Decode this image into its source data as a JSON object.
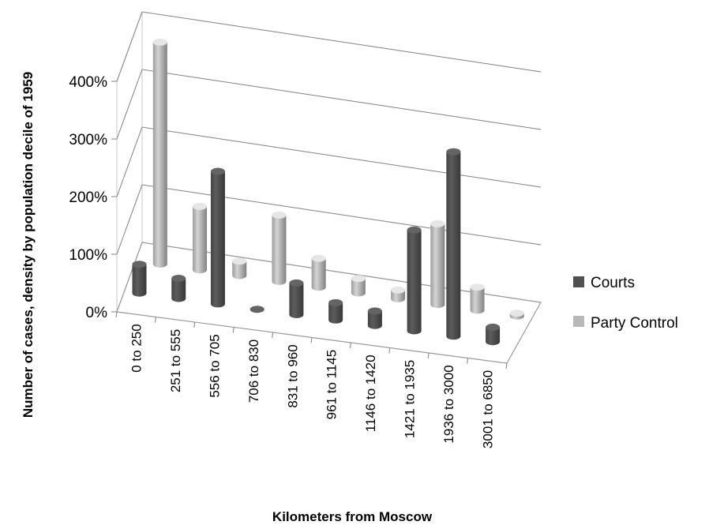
{
  "chart_data": {
    "type": "bar",
    "title": "",
    "xlabel": "Kilometers from Moscow",
    "ylabel": "Number of cases, density by population decile of 1959",
    "categories": [
      "0 to 250",
      "251 to 555",
      "556 to 705",
      "706 to 830",
      "831 to 960",
      "961 to 1145",
      "1146 to 1420",
      "1421 to 1935",
      "1936 to 3000",
      "3001 to 6850"
    ],
    "series": [
      {
        "name": "Courts",
        "color": "#505050",
        "values": [
          50,
          35,
          230,
          0,
          55,
          30,
          25,
          175,
          320,
          25
        ]
      },
      {
        "name": "Party Control",
        "color": "#b8b8b8",
        "values": [
          385,
          110,
          25,
          115,
          50,
          25,
          15,
          140,
          40,
          5
        ]
      }
    ],
    "y_ticks": [
      "0%",
      "100%",
      "200%",
      "300%",
      "400%"
    ],
    "ylim": [
      0,
      400
    ],
    "grid": true,
    "legend_position": "right",
    "projection": "3d-columns"
  }
}
